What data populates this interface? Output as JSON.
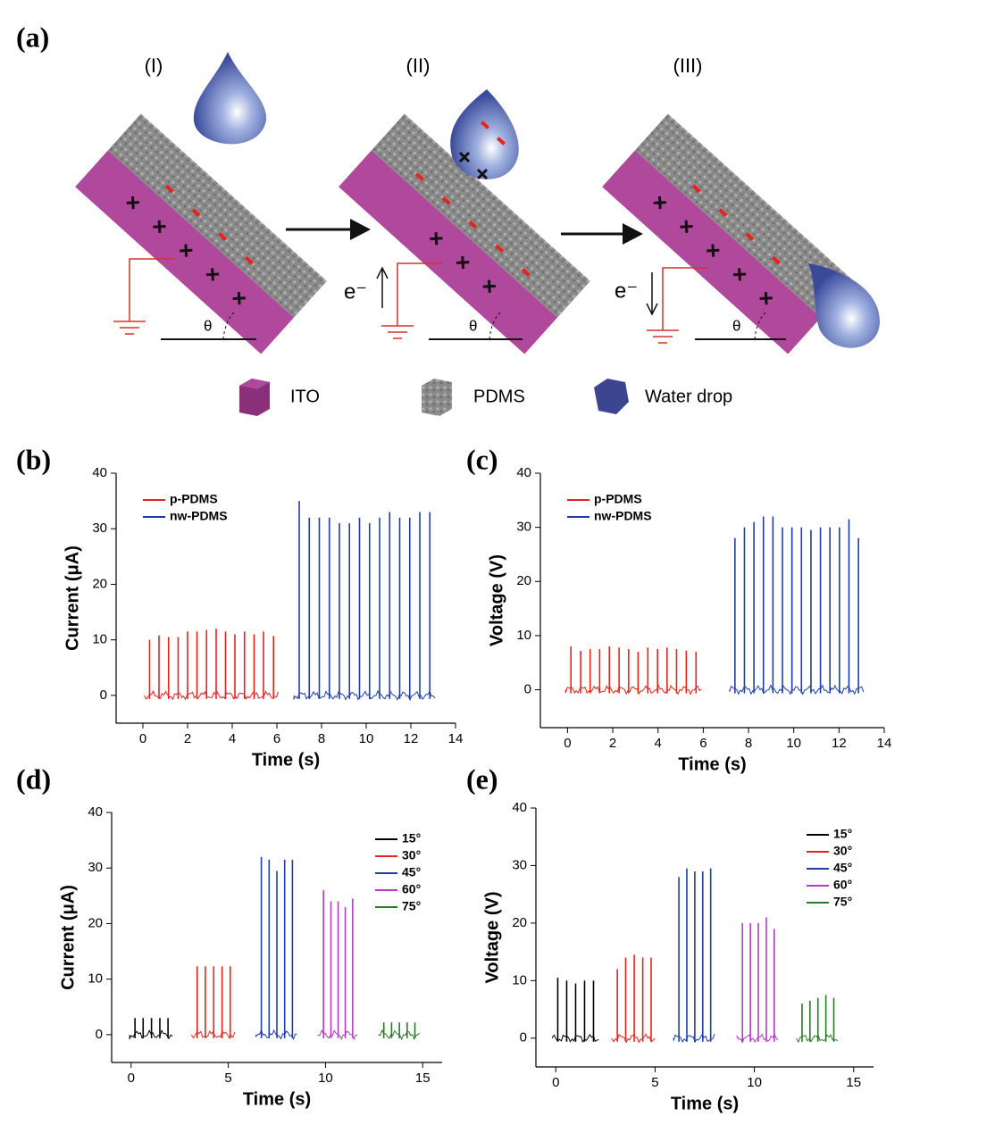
{
  "diagram": {
    "panel": "(a)",
    "stages": [
      "(I)",
      "(II)",
      "(III)"
    ],
    "electron_labels": [
      "e⁻",
      "e⁻"
    ],
    "angle_label": "θ",
    "legend": [
      "ITO",
      "PDMS",
      "Water drop"
    ]
  },
  "chart_data": [
    {
      "type": "spikes",
      "panel": "(b)",
      "x_label": "Time (s)",
      "y_label": "Current (μA)",
      "xlim": [
        -1.2,
        14
      ],
      "ylim": [
        -5,
        40
      ],
      "xticks": [
        0,
        2,
        4,
        6,
        8,
        10,
        12,
        14
      ],
      "yticks": [
        0,
        10,
        20,
        30,
        40
      ],
      "legend": "upper left",
      "series": [
        {
          "name": "p-PDMS",
          "color": "#e8231e",
          "x": [
            0.3,
            0.72,
            1.15,
            1.58,
            2.0,
            2.42,
            2.85,
            3.28,
            3.7,
            4.12,
            4.55,
            4.98,
            5.4,
            5.85
          ],
          "values": [
            10,
            10.8,
            10.5,
            10.5,
            11.5,
            11.5,
            11.8,
            12,
            11.5,
            11,
            11.5,
            11,
            11.5,
            10.7
          ]
        },
        {
          "name": "nw-PDMS",
          "color": "#1f3da8",
          "x": [
            7.0,
            7.45,
            7.9,
            8.35,
            8.8,
            9.25,
            9.7,
            10.15,
            10.6,
            11.05,
            11.5,
            11.95,
            12.4,
            12.85
          ],
          "values": [
            35,
            32,
            32,
            32,
            31,
            31,
            32,
            31,
            32,
            33,
            32,
            32,
            33,
            33
          ]
        }
      ]
    },
    {
      "type": "spikes",
      "panel": "(c)",
      "x_label": "Time (s)",
      "y_label": "Voltage (V)",
      "xlim": [
        -1.2,
        14
      ],
      "ylim": [
        -7,
        40
      ],
      "xticks": [
        0,
        2,
        4,
        6,
        8,
        10,
        12,
        14
      ],
      "yticks": [
        0,
        10,
        20,
        30,
        40
      ],
      "legend": "upper left",
      "series": [
        {
          "name": "p-PDMS",
          "color": "#e8231e",
          "x": [
            0.15,
            0.58,
            1.0,
            1.42,
            1.85,
            2.28,
            2.7,
            3.12,
            3.55,
            3.98,
            4.4,
            4.82,
            5.25,
            5.68
          ],
          "values": [
            8,
            7.2,
            7.5,
            7.5,
            8,
            7.8,
            7.5,
            7,
            7.8,
            7.5,
            7.8,
            7.5,
            7.2,
            7
          ]
        },
        {
          "name": "nw-PDMS",
          "color": "#1f3da8",
          "x": [
            7.4,
            7.82,
            8.24,
            8.66,
            9.08,
            9.5,
            9.92,
            10.34,
            10.76,
            11.18,
            11.6,
            12.02,
            12.44,
            12.86
          ],
          "values": [
            28,
            30,
            31,
            32,
            32,
            30,
            30,
            30,
            29.5,
            30,
            30,
            30,
            31.5,
            28
          ]
        }
      ]
    },
    {
      "type": "spikes",
      "panel": "(d)",
      "x_label": "Time (s)",
      "y_label": "Current (μA)",
      "xlim": [
        -1,
        16
      ],
      "ylim": [
        -5,
        40
      ],
      "xticks": [
        0,
        5,
        10,
        15
      ],
      "yticks": [
        0,
        10,
        20,
        30,
        40
      ],
      "legend": "upper right",
      "series": [
        {
          "name": "15°",
          "color": "#000000",
          "x": [
            0.2,
            0.62,
            1.05,
            1.48,
            1.9
          ],
          "values": [
            3,
            3,
            3,
            3,
            3
          ]
        },
        {
          "name": "30°",
          "color": "#e8231e",
          "x": [
            3.4,
            3.82,
            4.25,
            4.68,
            5.1
          ],
          "values": [
            12.3,
            12.3,
            12.3,
            12.3,
            12.3
          ]
        },
        {
          "name": "45°",
          "color": "#1f3da8",
          "x": [
            6.7,
            7.1,
            7.5,
            7.9,
            8.3
          ],
          "values": [
            32,
            31.5,
            29.5,
            31.5,
            31.5
          ]
        },
        {
          "name": "60°",
          "color": "#b03cc0",
          "x": [
            9.9,
            10.28,
            10.65,
            11.02,
            11.4
          ],
          "values": [
            26,
            24,
            24,
            23,
            24.5
          ]
        },
        {
          "name": "75°",
          "color": "#2a7a2a",
          "x": [
            13.0,
            13.4,
            13.8,
            14.2,
            14.6
          ],
          "values": [
            2.2,
            2.2,
            2.2,
            2.2,
            2.2
          ]
        }
      ]
    },
    {
      "type": "spikes",
      "panel": "(e)",
      "x_label": "Time (s)",
      "y_label": "Voltage (V)",
      "xlim": [
        -1,
        16
      ],
      "ylim": [
        -5,
        40
      ],
      "xticks": [
        0,
        5,
        10,
        15
      ],
      "yticks": [
        0,
        10,
        20,
        30,
        40
      ],
      "legend": "upper right",
      "series": [
        {
          "name": "15°",
          "color": "#000000",
          "x": [
            0.1,
            0.55,
            1.0,
            1.45,
            1.9
          ],
          "values": [
            10.5,
            10,
            9.5,
            10,
            10
          ]
        },
        {
          "name": "30°",
          "color": "#e8231e",
          "x": [
            3.1,
            3.52,
            3.95,
            4.38,
            4.8
          ],
          "values": [
            12,
            14,
            14.5,
            14,
            14
          ]
        },
        {
          "name": "45°",
          "color": "#1f3da8",
          "x": [
            6.2,
            6.6,
            7.0,
            7.4,
            7.8
          ],
          "values": [
            28,
            29.5,
            29,
            29,
            29.5
          ]
        },
        {
          "name": "60°",
          "color": "#b03cc0",
          "x": [
            9.4,
            9.8,
            10.2,
            10.6,
            11.0
          ],
          "values": [
            20,
            20,
            20,
            21,
            19
          ]
        },
        {
          "name": "75°",
          "color": "#2a7a2a",
          "x": [
            12.4,
            12.8,
            13.2,
            13.6,
            14.0
          ],
          "values": [
            6,
            6.5,
            7,
            7.5,
            7
          ]
        }
      ]
    }
  ]
}
